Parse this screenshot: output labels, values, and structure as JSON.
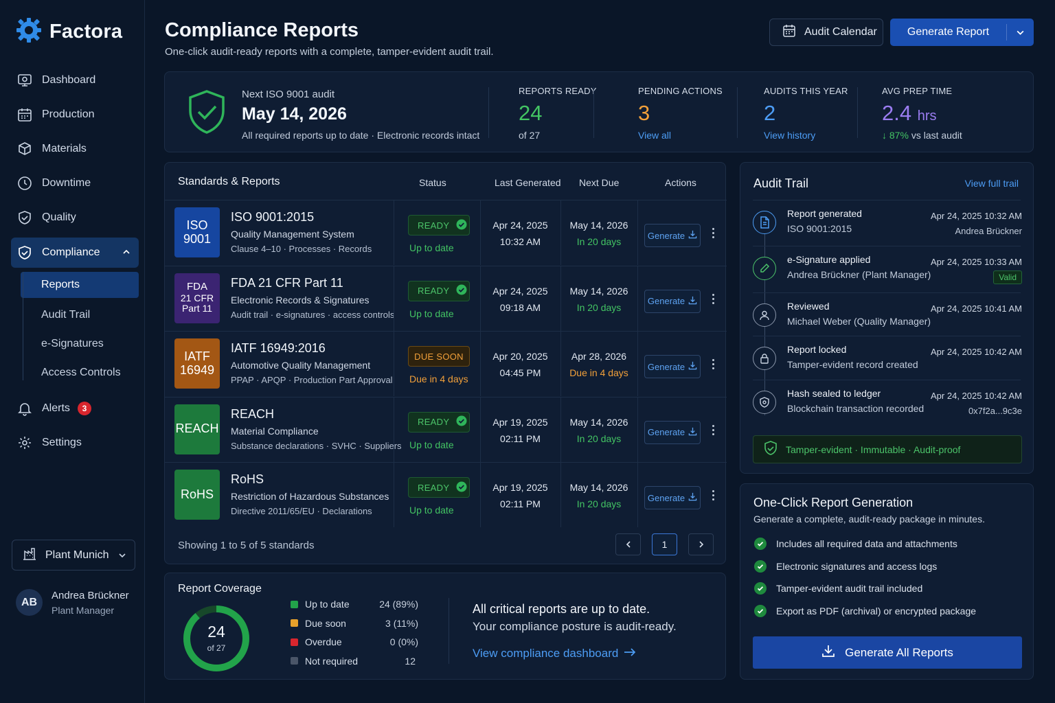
{
  "app": {
    "name": "Factora"
  },
  "nav": {
    "dashboard": "Dashboard",
    "production": "Production",
    "materials": "Materials",
    "downtime": "Downtime",
    "quality": "Quality",
    "compliance": "Compliance",
    "sub": {
      "reports": "Reports",
      "audit_trail": "Audit Trail",
      "esignatures": "e-Signatures",
      "access_controls": "Access Controls"
    },
    "alerts": "Alerts",
    "alerts_count": "3",
    "settings": "Settings"
  },
  "plant": "Plant Munich",
  "user": {
    "initials": "AB",
    "name": "Andrea Brückner",
    "role": "Plant Manager"
  },
  "header": {
    "title": "Compliance Reports",
    "subtitle": "One-click audit-ready reports with a complete, tamper-evident audit trail.",
    "audit_calendar": "Audit Calendar",
    "generate_report": "Generate Report"
  },
  "summary": {
    "next_label": "Next ISO 9001 audit",
    "next_date": "May 14, 2026",
    "next_note": "All required reports up to date · Electronic records intact",
    "kpis": [
      {
        "label": "REPORTS READY",
        "value": "24",
        "sub": "of 27",
        "color": "#43c463"
      },
      {
        "label": "PENDING ACTIONS",
        "value": "3",
        "sub": "View all",
        "color": "#f2a03a"
      },
      {
        "label": "AUDITS THIS YEAR",
        "value": "2",
        "sub": "View history",
        "color": "#4d9df5"
      },
      {
        "label": "AVG PREP TIME",
        "value": "2.4",
        "unit": "hrs",
        "trend": "87%",
        "sub": "vs last audit",
        "color": "#9b7df2"
      }
    ]
  },
  "standards": {
    "title": "Standards & Reports",
    "columns": {
      "status": "Status",
      "last": "Last Generated",
      "next": "Next Due",
      "actions": "Actions"
    },
    "rows": [
      {
        "tile": [
          "ISO",
          "9001"
        ],
        "tile_color": "#1646a0",
        "name": "ISO 9001:2015",
        "desc": "Quality Management System",
        "meta": "Clause 4–10 · Processes · Records",
        "status": "READY",
        "status_note": "Up to date",
        "last_date": "Apr 24, 2025",
        "last_time": "10:32 AM",
        "next_date": "May 14, 2026",
        "next_note": "In 20 days",
        "action": "Generate"
      },
      {
        "tile": [
          "FDA",
          "21 CFR",
          "Part 11"
        ],
        "tile_color": "#3b2472",
        "name": "FDA 21 CFR Part 11",
        "desc": "Electronic Records & Signatures",
        "meta": "Audit trail · e-signatures · access controls",
        "status": "READY",
        "status_note": "Up to date",
        "last_date": "Apr 24, 2025",
        "last_time": "09:18 AM",
        "next_date": "May 14, 2026",
        "next_note": "In 20 days",
        "action": "Generate"
      },
      {
        "tile": [
          "IATF",
          "16949"
        ],
        "tile_color": "#a35714",
        "name": "IATF 16949:2016",
        "desc": "Automotive Quality Management",
        "meta": "PPAP · APQP · Production Part Approval",
        "status": "DUE SOON",
        "status_note": "Due in 4 days",
        "last_date": "Apr 20, 2025",
        "last_time": "04:45 PM",
        "next_date": "Apr 28, 2026",
        "next_note": "Due in 4 days",
        "action": "Generate"
      },
      {
        "tile": [
          "REACH"
        ],
        "tile_color": "#1d7a3c",
        "name": "REACH",
        "desc": "Material Compliance",
        "meta": "Substance declarations · SVHC · Suppliers",
        "status": "READY",
        "status_note": "Up to date",
        "last_date": "Apr 19, 2025",
        "last_time": "02:11 PM",
        "next_date": "May 14, 2026",
        "next_note": "In 20 days",
        "action": "Generate"
      },
      {
        "tile": [
          "RoHS"
        ],
        "tile_color": "#1d7a3c",
        "name": "RoHS",
        "desc": "Restriction of Hazardous Substances",
        "meta": "Directive 2011/65/EU · Declarations",
        "status": "READY",
        "status_note": "Up to date",
        "last_date": "Apr 19, 2025",
        "last_time": "02:11 PM",
        "next_date": "May 14, 2026",
        "next_note": "In 20 days",
        "action": "Generate"
      }
    ],
    "showing": "Showing 1 to 5 of 5 standards",
    "page": "1"
  },
  "coverage": {
    "title": "Report Coverage",
    "center_value": "24",
    "center_sub": "of 27",
    "legend": [
      {
        "label": "Up to date",
        "value": "24 (89%)",
        "color": "#22a34a"
      },
      {
        "label": "Due soon",
        "value": "3 (11%)",
        "color": "#e7a12b"
      },
      {
        "label": "Overdue",
        "value": "0 (0%)",
        "color": "#d8262e"
      },
      {
        "label": "Not required",
        "value": "12",
        "color": "#4a5568"
      }
    ],
    "headline": "All critical reports are up to date.",
    "text": "Your compliance posture is audit-ready.",
    "link": "View compliance dashboard"
  },
  "audit_trail": {
    "title": "Audit Trail",
    "link": "View full trail",
    "items": [
      {
        "icon": "document-icon",
        "title": "Report generated",
        "detail": "ISO 9001:2015",
        "time": "Apr 24, 2025 10:32 AM",
        "extra": "Andrea Brückner"
      },
      {
        "icon": "pen-icon",
        "title": "e-Signature applied",
        "detail": "Andrea Brückner (Plant Manager)",
        "time": "Apr 24, 2025 10:33 AM",
        "extra": "Valid"
      },
      {
        "icon": "user-icon",
        "title": "Reviewed",
        "detail": "Michael Weber (Quality Manager)",
        "time": "Apr 24, 2025 10:41 AM",
        "extra": ""
      },
      {
        "icon": "lock-icon",
        "title": "Report locked",
        "detail": "Tamper-evident record created",
        "time": "Apr 24, 2025 10:42 AM",
        "extra": ""
      },
      {
        "icon": "hash-shield-icon",
        "title": "Hash sealed to ledger",
        "detail": "Blockchain transaction recorded",
        "time": "Apr 24, 2025 10:42 AM",
        "extra": "0x7f2a...9c3e"
      }
    ],
    "tamper": "Tamper-evident · Immutable · Audit-proof"
  },
  "oneclick": {
    "title": "One-Click Report Generation",
    "subtitle": "Generate a complete, audit-ready package in minutes.",
    "items": [
      "Includes all required data and attachments",
      "Electronic signatures and access logs",
      "Tamper-evident audit trail included",
      "Export as PDF (archival) or encrypted package"
    ],
    "button": "Generate All Reports"
  }
}
